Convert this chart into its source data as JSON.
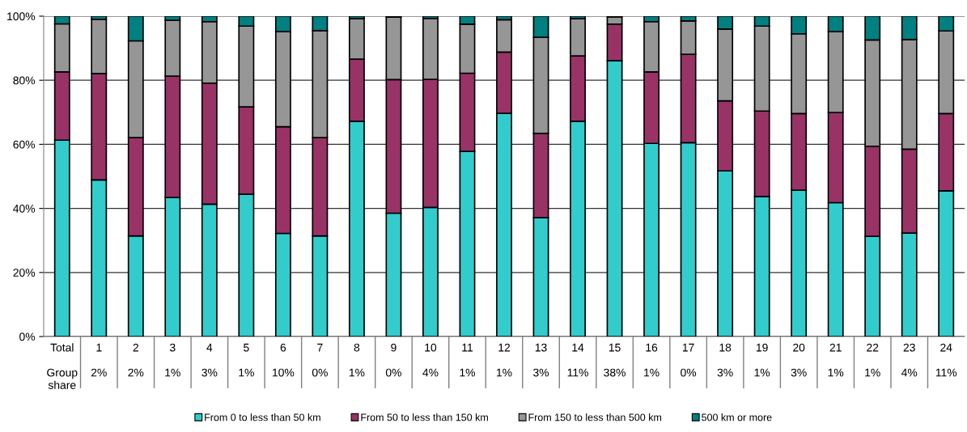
{
  "chart_data": {
    "type": "bar",
    "stacked": true,
    "categories": [
      "Total\n\nGroup\nshare",
      "1\n\n2%",
      "2\n\n2%",
      "3\n\n1%",
      "4\n\n3%",
      "5\n\n1%",
      "6\n\n10%",
      "7\n\n0%",
      "8\n\n1%",
      "9\n\n0%",
      "10\n\n4%",
      "11\n\n1%",
      "12\n\n1%",
      "13\n\n3%",
      "14\n\n11%",
      "15\n\n38%",
      "16\n\n1%",
      "17\n\n0%",
      "18\n\n3%",
      "19\n\n1%",
      "20\n\n3%",
      "21\n\n1%",
      "22\n\n1%",
      "23\n\n4%",
      "24\n\n11%"
    ],
    "series": [
      {
        "name": "From 0 to less than 50 km",
        "color": "#33cccc",
        "values": [
          61.3,
          48.9,
          31.4,
          43.4,
          41.3,
          44.4,
          32.2,
          31.4,
          67.2,
          38.5,
          40.3,
          57.8,
          69.7,
          37.1,
          67.2,
          86.1,
          60.3,
          60.5,
          51.7,
          43.7,
          45.7,
          41.8,
          31.3,
          32.3,
          45.5
        ]
      },
      {
        "name": "From 50 to less than 150 km",
        "color": "#993366",
        "values": [
          21.3,
          33.2,
          30.7,
          37.9,
          37.8,
          27.3,
          33.3,
          30.7,
          19.4,
          41.7,
          40.0,
          24.4,
          19.1,
          26.3,
          20.4,
          11.4,
          22.3,
          27.6,
          21.9,
          26.7,
          23.9,
          28.1,
          28.1,
          26.2,
          24.1
        ]
      },
      {
        "name": "From 150 to less than 500 km",
        "color": "#969696",
        "values": [
          15.0,
          16.9,
          30.2,
          17.4,
          19.2,
          25.2,
          29.7,
          33.4,
          12.6,
          19.5,
          19.0,
          15.3,
          10.1,
          30.0,
          11.6,
          2.3,
          15.7,
          10.4,
          22.4,
          26.5,
          24.9,
          25.3,
          33.2,
          34.2,
          25.8
        ]
      },
      {
        "name": "500 km or more",
        "color": "#008080",
        "values": [
          2.4,
          1.0,
          7.7,
          1.3,
          1.7,
          3.1,
          4.8,
          4.5,
          0.8,
          0.3,
          0.7,
          2.5,
          1.1,
          6.6,
          0.8,
          0.2,
          1.7,
          1.5,
          4.0,
          3.1,
          5.5,
          4.8,
          7.4,
          7.3,
          4.6
        ]
      }
    ],
    "ylim": [
      0,
      100
    ],
    "yticks": [
      {
        "value": 0,
        "label": "0%"
      },
      {
        "value": 20,
        "label": "20%"
      },
      {
        "value": 40,
        "label": "40%"
      },
      {
        "value": 60,
        "label": "60%"
      },
      {
        "value": 80,
        "label": "80%"
      },
      {
        "value": 100,
        "label": "100%"
      }
    ],
    "grid": "y",
    "legend": "bottom"
  }
}
